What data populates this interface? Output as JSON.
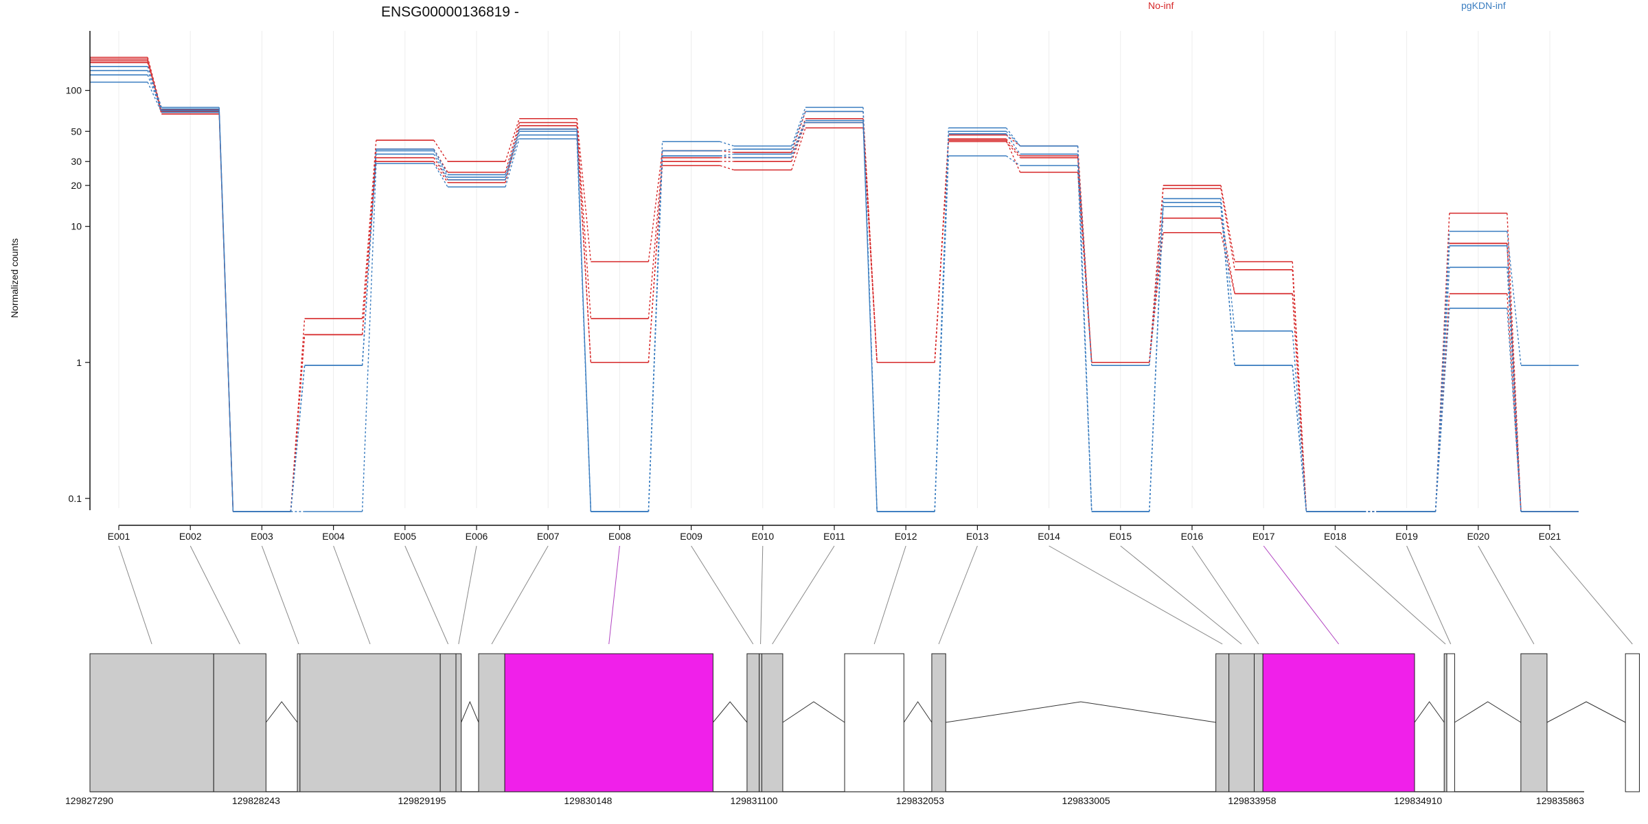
{
  "chart_data": {
    "type": "line",
    "title": "ENSG00000136819 -",
    "ylabel": "Normalized counts",
    "y_scale": "log",
    "ylim": [
      0.08,
      230
    ],
    "y_ticks": [
      0.1,
      1,
      10,
      20,
      30,
      50,
      100
    ],
    "grid": true,
    "legend": [
      {
        "name": "No-inf",
        "color": "#D62728"
      },
      {
        "name": "pgKDN-inf",
        "color": "#3A7DC0"
      }
    ],
    "categories": [
      "E001",
      "E002",
      "E003",
      "E004",
      "E005",
      "E006",
      "E007",
      "E008",
      "E009",
      "E010",
      "E011",
      "E012",
      "E013",
      "E014",
      "E015",
      "E016",
      "E017",
      "E018",
      "E019",
      "E020",
      "E021"
    ],
    "series": [
      {
        "name": "No-inf",
        "color": "#D62728",
        "values": [
          175,
          72,
          0.08,
          2.1,
          43,
          30,
          62,
          5.5,
          36,
          35,
          70,
          1,
          47,
          39,
          1,
          20,
          5.5,
          0.08,
          0.08,
          12.5,
          0.08
        ]
      },
      {
        "name": "No-inf",
        "color": "#D62728",
        "values": [
          170,
          70,
          0.08,
          1.6,
          37,
          25,
          58,
          2.1,
          32,
          32,
          62,
          1,
          44,
          33,
          1,
          19,
          4.8,
          0.08,
          0.08,
          7.5,
          0.08
        ]
      },
      {
        "name": "No-inf",
        "color": "#D62728",
        "values": [
          165,
          69,
          0.08,
          1.6,
          32,
          22,
          55,
          1,
          30,
          30,
          58,
          1,
          42,
          32,
          1,
          11.5,
          3.2,
          0.08,
          0.08,
          7.5,
          0.08
        ]
      },
      {
        "name": "No-inf",
        "color": "#D62728",
        "values": [
          160,
          67,
          0.08,
          1.6,
          30,
          21,
          52,
          1,
          28,
          26,
          53,
          1,
          43,
          25,
          1,
          9,
          3.2,
          0.08,
          0.08,
          3.2,
          0.08
        ]
      },
      {
        "name": "pgKDN-inf",
        "color": "#3A7DC0",
        "values": [
          150,
          75,
          0.08,
          0.95,
          37,
          24,
          52,
          0.08,
          42,
          39,
          75,
          0.08,
          53,
          39,
          0.08,
          16,
          1.7,
          0.08,
          0.08,
          9.2,
          0.95
        ]
      },
      {
        "name": "pgKDN-inf",
        "color": "#3A7DC0",
        "values": [
          140,
          73,
          0.08,
          0.95,
          36,
          23,
          50,
          0.08,
          36,
          37,
          70,
          0.08,
          50,
          39,
          0.08,
          15,
          0.95,
          0.08,
          0.08,
          7.2,
          0.08
        ]
      },
      {
        "name": "pgKDN-inf",
        "color": "#3A7DC0",
        "values": [
          130,
          71,
          0.08,
          0.95,
          34,
          22,
          47,
          0.08,
          33,
          34,
          60,
          0.08,
          48,
          34,
          0.95,
          14,
          0.95,
          0.08,
          0.08,
          5,
          0.08
        ]
      },
      {
        "name": "pgKDN-inf",
        "color": "#3A7DC0",
        "values": [
          115,
          69,
          0.08,
          0.08,
          29,
          19.5,
          44,
          0.08,
          33,
          32,
          58,
          0.08,
          33,
          28,
          0.08,
          14,
          0.95,
          0.08,
          0.08,
          2.5,
          0.08
        ]
      }
    ],
    "gene_model": {
      "coordinate_labels": [
        "129827290",
        "129828243",
        "129829195",
        "129830148",
        "129831100",
        "129832053",
        "129833005",
        "129833958",
        "129834910",
        "129835863"
      ],
      "exons": [
        {
          "exon": "E001",
          "start": 129827290,
          "end": 129828000,
          "fill": "#cccccc",
          "significant": false
        },
        {
          "exon": "E002",
          "start": 129828000,
          "end": 129828300,
          "fill": "#cccccc",
          "significant": false
        },
        {
          "exon": "E003",
          "start": 129828480,
          "end": 129828495,
          "fill": "#cccccc",
          "significant": false
        },
        {
          "exon": "E004",
          "start": 129828495,
          "end": 129829300,
          "fill": "#cccccc",
          "significant": false
        },
        {
          "exon": "E005",
          "start": 129829300,
          "end": 129829390,
          "fill": "#cccccc",
          "significant": false
        },
        {
          "exon": "E006",
          "start": 129829390,
          "end": 129829420,
          "fill": "#cccccc",
          "significant": false
        },
        {
          "exon": "E007",
          "start": 129829520,
          "end": 129829670,
          "fill": "#cccccc",
          "significant": false
        },
        {
          "exon": "E008",
          "start": 129829670,
          "end": 129830865,
          "fill": "#f020ea",
          "significant": true
        },
        {
          "exon": "E009",
          "start": 129831060,
          "end": 129831130,
          "fill": "#cccccc",
          "significant": false
        },
        {
          "exon": "E010",
          "start": 129831130,
          "end": 129831145,
          "fill": "#cccccc",
          "significant": false
        },
        {
          "exon": "E011",
          "start": 129831145,
          "end": 129831265,
          "fill": "#cccccc",
          "significant": false
        },
        {
          "exon": "E012",
          "start": 129831620,
          "end": 129831960,
          "fill": "#ffffff",
          "significant": false
        },
        {
          "exon": "E013",
          "start": 129832120,
          "end": 129832200,
          "fill": "#cccccc",
          "significant": false
        },
        {
          "exon": "E014",
          "start": 129833750,
          "end": 129833825,
          "fill": "#cccccc",
          "significant": false
        },
        {
          "exon": "E015",
          "start": 129833825,
          "end": 129833970,
          "fill": "#cccccc",
          "significant": false
        },
        {
          "exon": "E016",
          "start": 129833970,
          "end": 129834020,
          "fill": "#cccccc",
          "significant": false
        },
        {
          "exon": "E017",
          "start": 129834020,
          "end": 129834890,
          "fill": "#f020ea",
          "significant": true
        },
        {
          "exon": "E018",
          "start": 129835060,
          "end": 129835075,
          "fill": "#cccccc",
          "significant": false
        },
        {
          "exon": "E019",
          "start": 129835075,
          "end": 129835120,
          "fill": "#ffffff",
          "significant": false
        },
        {
          "exon": "E020",
          "start": 129835500,
          "end": 129835650,
          "fill": "#cccccc",
          "significant": false
        },
        {
          "exon": "E021",
          "start": 129836100,
          "end": 129836180,
          "fill": "#ffffff",
          "significant": false
        }
      ]
    }
  }
}
